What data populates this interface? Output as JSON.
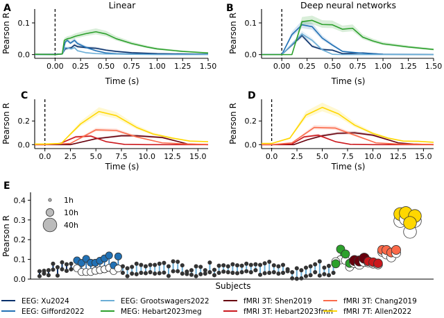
{
  "chart_data": [
    {
      "id": "A",
      "panel_label": "A",
      "type": "line",
      "title": "Linear",
      "xlabel": "Time (s)",
      "ylabel": "Pearson R",
      "xlim": [
        -0.2,
        1.5
      ],
      "ylim": [
        -0.003,
        0.135
      ],
      "xticks": [
        0.0,
        0.25,
        0.5,
        0.75,
        1.0,
        1.25,
        1.5
      ],
      "xticklabels": [
        "0.00",
        "0.25",
        "0.50",
        "0.75",
        "1.00",
        "1.25",
        "1.50"
      ],
      "yticks": [
        0.0,
        0.1
      ],
      "yticklabels": [
        "0.0",
        "0.1"
      ],
      "onset_line_x": 0.0,
      "series": [
        {
          "name": "EEG: Xu2024",
          "x": [
            -0.2,
            0.0,
            0.07,
            0.1,
            0.13,
            0.16,
            0.19,
            0.22,
            0.3,
            0.4,
            0.5,
            0.6,
            0.75,
            1.0,
            1.25,
            1.5
          ],
          "y": [
            0.001,
            0.001,
            0.002,
            0.018,
            0.02,
            0.022,
            0.03,
            0.025,
            0.022,
            0.02,
            0.014,
            0.01,
            0.006,
            0.003,
            0.002,
            0.001
          ]
        },
        {
          "name": "EEG: Gifford2022",
          "x": [
            -0.2,
            0.0,
            0.07,
            0.1,
            0.12,
            0.15,
            0.19,
            0.22,
            0.3,
            0.4,
            0.5,
            0.6,
            0.75,
            1.0,
            1.5
          ],
          "y": [
            0.0,
            0.0,
            0.002,
            0.04,
            0.045,
            0.036,
            0.045,
            0.035,
            0.023,
            0.012,
            0.005,
            0.003,
            0.002,
            0.001,
            0.001
          ]
        },
        {
          "name": "EEG: Grootswagers2022",
          "x": [
            -0.2,
            0.0,
            0.07,
            0.1,
            0.13,
            0.16,
            0.19,
            0.22,
            0.3,
            0.4,
            0.5,
            0.75,
            1.0,
            1.5
          ],
          "y": [
            0.0,
            0.0,
            0.002,
            0.022,
            0.02,
            0.018,
            0.022,
            0.012,
            0.006,
            0.003,
            0.002,
            0.001,
            0.0,
            0.0
          ]
        },
        {
          "name": "MEG: Hebart2023meg",
          "x": [
            -0.2,
            0.0,
            0.07,
            0.09,
            0.12,
            0.15,
            0.2,
            0.3,
            0.4,
            0.5,
            0.6,
            0.75,
            0.9,
            1.0,
            1.25,
            1.5
          ],
          "y": [
            0.001,
            0.0,
            0.002,
            0.045,
            0.05,
            0.052,
            0.058,
            0.066,
            0.072,
            0.065,
            0.05,
            0.035,
            0.024,
            0.018,
            0.01,
            0.005
          ]
        }
      ]
    },
    {
      "id": "B",
      "panel_label": "B",
      "type": "line",
      "title": "Deep neural networks",
      "xlabel": "Time (s)",
      "ylabel": "Pearson R",
      "xlim": [
        -0.2,
        1.5
      ],
      "ylim": [
        -0.003,
        0.135
      ],
      "xticks": [
        0.0,
        0.25,
        0.5,
        0.75,
        1.0,
        1.25,
        1.5
      ],
      "xticklabels": [
        "0.00",
        "0.25",
        "0.50",
        "0.75",
        "1.00",
        "1.25",
        "1.50"
      ],
      "yticks": [
        0.0,
        0.1
      ],
      "yticklabels": [
        "0.0",
        "0.1"
      ],
      "onset_line_x": 0.0,
      "series": [
        {
          "name": "EEG: Xu2024",
          "x": [
            -0.2,
            0.0,
            0.1,
            0.2,
            0.3,
            0.4,
            0.5,
            0.6,
            0.7,
            0.8,
            1.0,
            1.5
          ],
          "y": [
            0.0,
            0.0,
            0.03,
            0.06,
            0.026,
            0.016,
            0.014,
            0.003,
            0.004,
            0.005,
            0.001,
            0.0
          ]
        },
        {
          "name": "EEG: Gifford2022",
          "x": [
            -0.2,
            0.0,
            0.1,
            0.2,
            0.3,
            0.4,
            0.5,
            0.6,
            0.7,
            0.8,
            1.0,
            1.5
          ],
          "y": [
            0.0,
            0.0,
            0.063,
            0.094,
            0.088,
            0.052,
            0.03,
            0.01,
            0.007,
            0.004,
            0.001,
            0.0
          ]
        },
        {
          "name": "EEG: Grootswagers2022",
          "x": [
            -0.2,
            0.0,
            0.1,
            0.2,
            0.3,
            0.4,
            0.5,
            0.6,
            1.0,
            1.5
          ],
          "y": [
            0.0,
            0.0,
            0.032,
            0.065,
            0.045,
            0.015,
            0.001,
            0.0,
            0.0,
            0.0
          ]
        },
        {
          "name": "MEG: Hebart2023meg",
          "x": [
            -0.2,
            0.0,
            0.1,
            0.2,
            0.3,
            0.4,
            0.5,
            0.6,
            0.7,
            0.8,
            0.9,
            1.0,
            1.25,
            1.5
          ],
          "y": [
            0.0,
            0.0,
            0.0,
            0.104,
            0.108,
            0.095,
            0.094,
            0.08,
            0.083,
            0.055,
            0.043,
            0.034,
            0.024,
            0.016
          ]
        }
      ]
    },
    {
      "id": "C",
      "panel_label": "C",
      "type": "line",
      "title": "",
      "xlabel": "Time (s)",
      "ylabel": "Pearson R",
      "xlim": [
        -1.0,
        16.0
      ],
      "ylim": [
        -0.01,
        0.36
      ],
      "xticks": [
        0.0,
        2.5,
        5.0,
        7.5,
        10.0,
        12.5,
        15.0
      ],
      "xticklabels": [
        "0.0",
        "2.5",
        "5.0",
        "7.5",
        "10.0",
        "12.5",
        "15.0"
      ],
      "yticks": [
        0.0,
        0.2
      ],
      "yticklabels": [
        "0.0",
        "0.2"
      ],
      "onset_line_x": 0.0,
      "series": [
        {
          "name": "fMRI 3T: Shen2019",
          "x": [
            -1.0,
            0.0,
            2.5,
            5.0,
            7.5,
            9.0,
            11.5,
            14.0,
            16.0
          ],
          "y": [
            0.0,
            0.0,
            0.0,
            0.05,
            0.075,
            0.075,
            0.06,
            0.005,
            0.0
          ]
        },
        {
          "name": "fMRI 3T: Hebart2023fmri",
          "x": [
            -1.0,
            0.0,
            1.5,
            3.0,
            4.5,
            6.0,
            7.8,
            10.0,
            16.0
          ],
          "y": [
            0.0,
            0.0,
            0.01,
            0.065,
            0.072,
            0.025,
            0.002,
            0.0,
            0.0
          ]
        },
        {
          "name": "fMRI 3T: Chang2019",
          "x": [
            -1.0,
            0.0,
            2.5,
            5.0,
            7.0,
            9.0,
            11.5,
            14.0,
            16.0
          ],
          "y": [
            0.0,
            0.0,
            0.01,
            0.125,
            0.12,
            0.065,
            0.015,
            0.005,
            0.002
          ]
        },
        {
          "name": "fMRI 7T: Allen2022",
          "x": [
            -1.0,
            0.0,
            1.6,
            3.5,
            5.3,
            7.0,
            9.0,
            10.6,
            12.5,
            14.2,
            16.0
          ],
          "y": [
            0.005,
            0.005,
            0.01,
            0.175,
            0.28,
            0.245,
            0.145,
            0.09,
            0.055,
            0.03,
            0.025
          ]
        }
      ]
    },
    {
      "id": "D",
      "panel_label": "D",
      "type": "line",
      "title": "",
      "xlabel": "Time (s)",
      "ylabel": "Pearson R",
      "xlim": [
        -1.0,
        16.0
      ],
      "ylim": [
        -0.01,
        0.36
      ],
      "xticks": [
        0.0,
        2.5,
        5.0,
        7.5,
        10.0,
        12.5,
        15.0
      ],
      "xticklabels": [
        "0.0",
        "2.5",
        "5.0",
        "7.5",
        "10.0",
        "12.5",
        "15.0"
      ],
      "yticks": [
        0.0,
        0.2
      ],
      "yticklabels": [
        "0.0",
        "0.2"
      ],
      "onset_line_x": 0.0,
      "series": [
        {
          "name": "fMRI 3T: Shen2019",
          "x": [
            -1.0,
            0.0,
            2.2,
            3.5,
            5.0,
            6.5,
            8.2,
            10.0,
            12.5,
            14.0,
            16.0
          ],
          "y": [
            0.0,
            0.0,
            0.0,
            0.04,
            0.075,
            0.095,
            0.1,
            0.08,
            0.015,
            0.005,
            0.0
          ]
        },
        {
          "name": "fMRI 3T: Hebart2023fmri",
          "x": [
            -1.0,
            0.0,
            2.0,
            3.2,
            4.6,
            6.3,
            7.8,
            10.0,
            16.0
          ],
          "y": [
            0.0,
            0.0,
            0.005,
            0.065,
            0.08,
            0.025,
            0.002,
            0.0,
            0.0
          ]
        },
        {
          "name": "fMRI 3T: Chang2019",
          "x": [
            -1.0,
            0.0,
            2.0,
            4.2,
            6.3,
            8.2,
            10.3,
            12.5,
            16.0
          ],
          "y": [
            0.0,
            0.0,
            0.015,
            0.145,
            0.14,
            0.08,
            0.015,
            0.005,
            0.002
          ]
        },
        {
          "name": "fMRI 7T: Allen2022",
          "x": [
            -1.0,
            0.0,
            1.8,
            3.4,
            5.0,
            6.6,
            8.2,
            10.0,
            11.5,
            13.0,
            14.5,
            16.0
          ],
          "y": [
            0.01,
            0.01,
            0.055,
            0.25,
            0.315,
            0.26,
            0.165,
            0.095,
            0.055,
            0.03,
            0.028,
            0.02
          ]
        }
      ]
    },
    {
      "id": "E",
      "panel_label": "E",
      "type": "scatter",
      "title": "",
      "xlabel": "Subjects",
      "ylabel": "Pearson R",
      "ylim": [
        0.0,
        0.44
      ],
      "yticks": [
        0.0,
        0.1,
        0.2,
        0.3,
        0.4
      ],
      "yticklabels": [
        "0.0",
        "0.1",
        "0.2",
        "0.3",
        "0.4"
      ],
      "description": "Per-subject dumbbells: filled marker = deep neural network R, open marker = linear R; marker size = hours of data",
      "size_legend": {
        "location": "top-left",
        "entries": [
          {
            "label": "1h",
            "hours": 1
          },
          {
            "label": "10h",
            "hours": 10
          },
          {
            "label": "40h",
            "hours": 40
          }
        ]
      },
      "groups": [
        {
          "name": "EEG: Xu2024",
          "hours": 1,
          "dnn": [
            0.04,
            0.042,
            0.045,
            0.078,
            0.06,
            0.085,
            0.075,
            0.078
          ],
          "linear": [
            0.015,
            0.028,
            0.02,
            0.048,
            0.018,
            0.05,
            0.042,
            0.05
          ]
        },
        {
          "name": "EEG: Gifford2022",
          "hours": 8,
          "dnn": [
            0.095,
            0.082,
            0.103,
            0.083,
            0.083,
            0.093,
            0.105,
            0.12,
            0.07,
            0.115
          ],
          "linear": [
            0.055,
            0.036,
            0.036,
            0.036,
            0.042,
            0.046,
            0.05,
            0.057,
            0.041,
            0.054
          ]
        },
        {
          "name": "EEG: Grootswagers2022",
          "hours": 1,
          "dnn": [
            0.065,
            0.055,
            0.062,
            0.078,
            0.072,
            0.065,
            0.072,
            0.072,
            0.078,
            0.082,
            0.065,
            0.09,
            0.088,
            0.07,
            0.038,
            0.045,
            0.065,
            0.062,
            0.045,
            0.084,
            0.047,
            0.068,
            0.07,
            0.065,
            0.075,
            0.07,
            0.068,
            0.078,
            0.072,
            0.075,
            0.072,
            0.08,
            0.088,
            0.07,
            0.065,
            0.072,
            0.05,
            0.035,
            0.055,
            0.045,
            0.058,
            0.065,
            0.075,
            0.09,
            0.058,
            0.067,
            0.075
          ],
          "linear": [
            0.032,
            0.015,
            0.028,
            0.025,
            0.032,
            0.03,
            0.035,
            0.028,
            0.03,
            0.033,
            0.016,
            0.04,
            0.04,
            0.028,
            0.026,
            0.022,
            0.015,
            0.025,
            0.028,
            0.035,
            0.02,
            0.032,
            0.038,
            0.035,
            0.032,
            0.03,
            0.035,
            0.04,
            0.035,
            0.045,
            0.022,
            0.03,
            0.032,
            0.035,
            0.028,
            0.032,
            0.04,
            0.004,
            0.002,
            0.004,
            0.015,
            0.02,
            0.035,
            0.018,
            0.025,
            0.02,
            0.032
          ]
        },
        {
          "name": "MEG: Hebart2023meg",
          "hours": 12,
          "dnn": [
            0.152,
            0.127,
            0.078,
            0.08
          ],
          "linear": [
            0.098,
            0.095,
            0.088,
            0.062
          ]
        },
        {
          "name": "fMRI 3T: Shen2019",
          "hours": 20,
          "dnn": [
            0.094,
            0.092,
            0.106
          ],
          "linear": [
            0.084,
            0.076,
            0.09
          ]
        },
        {
          "name": "fMRI 3T: Hebart2023fmri",
          "hours": 14,
          "dnn": [
            0.09,
            0.086,
            0.08
          ],
          "linear": [
            0.084,
            0.078,
            0.074
          ]
        },
        {
          "name": "fMRI 3T: Chang2019",
          "hours": 15,
          "dnn": [
            0.148,
            0.148,
            0.135,
            0.148
          ],
          "linear": [
            0.138,
            0.125,
            0.11,
            0.132
          ]
        },
        {
          "name": "fMRI 7T: Allen2022",
          "hours": 35,
          "dnn": [
            0.33,
            0.335,
            0.32,
            0.285
          ],
          "linear": [
            0.295,
            0.305,
            0.295,
            0.24
          ]
        }
      ]
    }
  ],
  "legend": {
    "location": "bottom",
    "entries": [
      {
        "name": "EEG: Xu2024",
        "color": "#08306b"
      },
      {
        "name": "EEG: Gifford2022",
        "color": "#2171b5"
      },
      {
        "name": "EEG: Grootswagers2022",
        "color": "#6baed6"
      },
      {
        "name": "MEG: Hebart2023meg",
        "color": "#2ca02c"
      },
      {
        "name": "fMRI 3T: Shen2019",
        "color": "#67000d"
      },
      {
        "name": "fMRI 3T: Hebart2023fmri",
        "color": "#cb181d"
      },
      {
        "name": "fMRI 3T: Chang2019",
        "color": "#fb6a4a"
      },
      {
        "name": "fMRI 7T: Allen2022",
        "color": "#ffd700"
      }
    ]
  }
}
